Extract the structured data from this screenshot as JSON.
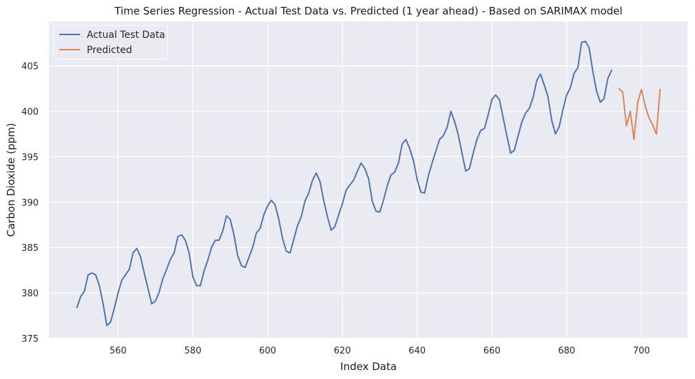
{
  "chart_data": {
    "type": "line",
    "title": "Time Series Regression - Actual Test Data vs. Predicted (1 year ahead) - Based on SARIMAX model",
    "xlabel": "Index Data",
    "ylabel": "Carbon Dioxide (ppm)",
    "xlim": [
      541.5,
      712.3
    ],
    "ylim": [
      375,
      409.9
    ],
    "x_ticks": [
      560,
      580,
      600,
      620,
      640,
      660,
      680,
      700
    ],
    "y_ticks": [
      375,
      380,
      385,
      390,
      395,
      400,
      405
    ],
    "grid": true,
    "legend_position": "top-left",
    "colors": {
      "background": "#eaeaf2",
      "grid": "#ffffff",
      "actual": "#4c72b0",
      "predicted": "#dd8452"
    },
    "series": [
      {
        "name": "Actual Test Data",
        "color": "#4c72b0",
        "x": [
          549,
          550,
          551,
          552,
          553,
          554,
          555,
          556,
          557,
          558,
          559,
          560,
          561,
          562,
          563,
          564,
          565,
          566,
          567,
          568,
          569,
          570,
          571,
          572,
          573,
          574,
          575,
          576,
          577,
          578,
          579,
          580,
          581,
          582,
          583,
          584,
          585,
          586,
          587,
          588,
          589,
          590,
          591,
          592,
          593,
          594,
          595,
          596,
          597,
          598,
          599,
          600,
          601,
          602,
          603,
          604,
          605,
          606,
          607,
          608,
          609,
          610,
          611,
          612,
          613,
          614,
          615,
          616,
          617,
          618,
          619,
          620,
          621,
          622,
          623,
          624,
          625,
          626,
          627,
          628,
          629,
          630,
          631,
          632,
          633,
          634,
          635,
          636,
          637,
          638,
          639,
          640,
          641,
          642,
          643,
          644,
          645,
          646,
          647,
          648,
          649,
          650,
          651,
          652,
          653,
          654,
          655,
          656,
          657,
          658,
          659,
          660,
          661,
          662,
          663,
          664,
          665,
          666,
          667,
          668,
          669,
          670,
          671,
          672,
          673,
          674,
          675,
          676,
          677,
          678,
          679,
          680,
          681,
          682,
          683,
          684,
          685,
          686,
          687,
          688,
          689,
          690,
          691,
          692
        ],
        "y": [
          378.4,
          379.6,
          380.2,
          382.0,
          382.2,
          382.0,
          380.8,
          378.8,
          376.4,
          376.8,
          378.3,
          380.0,
          381.4,
          382.0,
          382.6,
          384.4,
          384.9,
          384.0,
          382.2,
          380.5,
          378.8,
          379.1,
          380.1,
          381.6,
          382.6,
          383.7,
          384.4,
          386.2,
          386.4,
          385.8,
          384.4,
          381.8,
          380.8,
          380.8,
          382.4,
          383.6,
          385.0,
          385.8,
          385.8,
          386.8,
          388.5,
          388.1,
          386.4,
          384.1,
          383.0,
          382.8,
          383.9,
          385.0,
          386.6,
          387.1,
          388.6,
          389.6,
          390.2,
          389.7,
          388.1,
          386.0,
          384.6,
          384.4,
          385.9,
          387.4,
          388.4,
          390.1,
          391.0,
          392.4,
          393.2,
          392.3,
          390.2,
          388.4,
          386.9,
          387.3,
          388.6,
          389.8,
          391.3,
          391.9,
          392.4,
          393.4,
          394.3,
          393.7,
          392.6,
          390.1,
          389.0,
          388.9,
          390.2,
          391.8,
          393.0,
          393.3,
          394.3,
          396.4,
          396.9,
          395.9,
          394.6,
          392.5,
          391.1,
          391.0,
          392.9,
          394.3,
          395.6,
          396.9,
          397.3,
          398.2,
          400.0,
          398.9,
          397.4,
          395.4,
          393.4,
          393.7,
          395.4,
          396.9,
          397.9,
          398.1,
          399.6,
          401.3,
          401.8,
          401.3,
          399.3,
          397.3,
          395.4,
          395.7,
          397.3,
          398.8,
          399.8,
          400.3,
          401.5,
          403.4,
          404.1,
          402.9,
          401.6,
          399.0,
          397.5,
          398.3,
          400.2,
          401.8,
          402.6,
          404.2,
          404.8,
          407.6,
          407.7,
          407.0,
          404.4,
          402.2,
          401.0,
          401.4,
          403.6,
          404.5
        ]
      },
      {
        "name": "Predicted",
        "color": "#dd8452",
        "x": [
          694,
          695,
          696,
          697,
          698,
          699,
          700,
          701,
          702,
          703,
          704,
          705
        ],
        "y": [
          402.5,
          402.1,
          398.4,
          400.0,
          396.9,
          401.0,
          402.4,
          400.6,
          399.3,
          398.5,
          397.5,
          402.4
        ]
      }
    ]
  }
}
